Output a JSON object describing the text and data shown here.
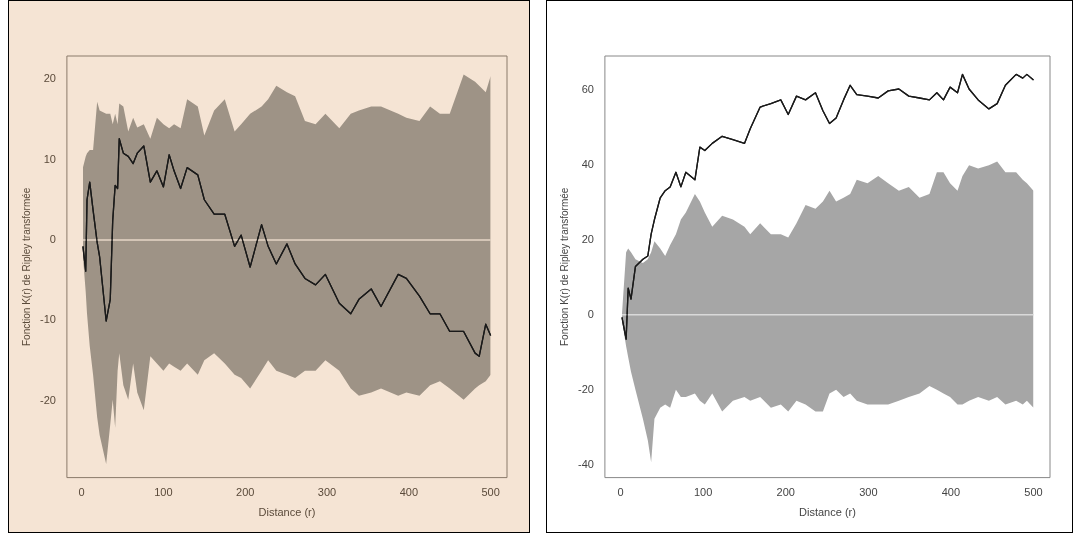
{
  "chart_data": [
    {
      "type": "line",
      "xlabel": "Distance (r)",
      "ylabel": "Fonction K(r) de Ripley transformée",
      "xlim": [
        -18,
        520
      ],
      "ylim": [
        -29.6,
        22.9
      ],
      "xticks": [
        0,
        100,
        200,
        300,
        400,
        500
      ],
      "yticks": [
        -20,
        -10,
        0,
        10,
        20
      ],
      "grid": false,
      "ref_lines": [
        {
          "axis": "y",
          "value": 0,
          "color": "#e6d6c6"
        }
      ],
      "x": [
        1.6,
        5,
        6.6,
        9.9,
        14,
        19,
        22,
        30,
        35,
        38,
        41,
        44,
        46,
        51,
        57,
        63,
        68,
        76,
        84,
        92,
        100,
        107,
        113,
        121,
        129,
        142,
        150,
        162,
        175,
        187,
        195,
        206,
        220,
        228,
        238,
        251,
        261,
        273,
        286,
        298,
        315,
        329,
        339,
        354,
        366,
        387,
        397,
        413,
        426,
        438,
        450,
        467,
        481,
        486,
        494,
        500
      ],
      "series": [
        {
          "color": "#1a1a1a",
          "values": [
            -0.8,
            -3.9,
            5,
            7.2,
            3.7,
            -0.3,
            -2.1,
            -10.1,
            -7.4,
            2.4,
            6.8,
            6.4,
            12.6,
            10.8,
            10.4,
            9.5,
            10.8,
            11.7,
            7.2,
            8.6,
            6.6,
            10.6,
            8.6,
            6.4,
            9,
            8.1,
            5,
            3.2,
            3.2,
            -0.8,
            0.6,
            -3.4,
            1.9,
            -0.8,
            -3,
            -0.5,
            -3,
            -4.8,
            -5.6,
            -4.3,
            -7.9,
            -9.2,
            -7.4,
            -6.1,
            -8.3,
            -4.3,
            -4.8,
            -7,
            -9.2,
            -9.2,
            -11.4,
            -11.4,
            -14.1,
            -14.5,
            -10.5,
            -11.9
          ],
          "upper": [
            9,
            10.4,
            10.8,
            11.2,
            11.2,
            17.2,
            16.1,
            15.7,
            15.7,
            14.4,
            15.7,
            14.4,
            17,
            16.6,
            13.5,
            15.2,
            14,
            14.4,
            12.6,
            15.2,
            14.4,
            13.9,
            14.4,
            13.9,
            17.5,
            16.6,
            13,
            16.1,
            17.5,
            13.5,
            14.4,
            15.7,
            16.6,
            17.5,
            19.2,
            18.4,
            17.9,
            14.8,
            14.4,
            15.7,
            13.9,
            15.7,
            16.1,
            16.6,
            16.6,
            15.7,
            15.2,
            14.8,
            16.6,
            15.7,
            15.7,
            20.6,
            19.7,
            19.2,
            18.4,
            20.4
          ],
          "lower": [
            -2.1,
            -6.5,
            -9.2,
            -13.2,
            -16.8,
            -22.1,
            -24.3,
            -27.9,
            -23,
            -19.9,
            -23.4,
            -16.3,
            -14.1,
            -18.1,
            -19.9,
            -15.4,
            -19,
            -21.2,
            -14.5,
            -15.4,
            -16.3,
            -15.4,
            -15.8,
            -16.3,
            -15.4,
            -16.8,
            -15,
            -14.1,
            -15.4,
            -16.8,
            -17.2,
            -18.5,
            -16.3,
            -15,
            -16.3,
            -16.8,
            -17.2,
            -16.3,
            -16.3,
            -15,
            -16.3,
            -18.5,
            -19.4,
            -19,
            -18.5,
            -19.4,
            -19,
            -19.4,
            -18.1,
            -17.6,
            -18.5,
            -19.9,
            -18.5,
            -18.1,
            -17.6,
            -16.8
          ]
        }
      ]
    },
    {
      "type": "line",
      "xlabel": "Distance (r)",
      "ylabel": "Fonction K(r) de Ripley transformée",
      "xlim": [
        -19,
        520
      ],
      "ylim": [
        -43.4,
        69
      ],
      "xticks": [
        0,
        100,
        200,
        300,
        400,
        500
      ],
      "yticks": [
        -40,
        -20,
        0,
        20,
        40,
        60
      ],
      "grid": false,
      "ref_lines": [
        {
          "axis": "y",
          "value": 0,
          "color": "#d9d9d9"
        }
      ],
      "x": [
        1.7,
        6.7,
        9.2,
        12.6,
        18,
        27,
        33,
        37,
        41,
        48,
        54,
        60,
        67,
        73,
        79,
        90,
        96,
        102,
        111,
        123,
        136,
        150,
        157,
        169,
        182,
        194,
        203,
        213,
        224,
        236,
        245,
        253,
        261,
        270,
        278,
        286,
        299,
        312,
        324,
        337,
        349,
        362,
        374,
        383,
        391,
        399,
        408,
        414,
        422,
        433,
        446,
        456,
        466,
        479,
        487,
        492,
        500
      ],
      "series": [
        {
          "color": "#1a1a1a",
          "values": [
            -0.7,
            -6.5,
            7.1,
            4.2,
            12.9,
            14.8,
            15.7,
            21.5,
            25.4,
            31.2,
            33.1,
            34.1,
            38,
            34.1,
            38,
            36,
            44.7,
            43.8,
            45.7,
            47.6,
            46.7,
            45.7,
            49.6,
            55.4,
            56.3,
            57.3,
            53.4,
            58.3,
            57.3,
            59.2,
            54.4,
            51,
            52.5,
            57.3,
            61.2,
            58.7,
            58.3,
            57.8,
            59.7,
            60.2,
            58.3,
            57.8,
            57.3,
            59.2,
            57.3,
            60.7,
            59.2,
            64.1,
            60.2,
            57.3,
            54.9,
            56.3,
            61.2,
            64.1,
            63.1,
            64.1,
            62.6
          ],
          "upper": [
            0.3,
            16.7,
            17.7,
            16.7,
            14.8,
            13.8,
            14.8,
            16.7,
            19.6,
            17.7,
            15.7,
            18.6,
            21.5,
            25.4,
            27.3,
            32.2,
            30.2,
            27.3,
            23.5,
            26.4,
            25.4,
            23.5,
            21.5,
            24.4,
            21.5,
            21.5,
            20.6,
            24.4,
            29.3,
            28.3,
            30.2,
            33.1,
            30.2,
            31.2,
            32.2,
            36,
            35.1,
            37,
            35.1,
            33.1,
            34.1,
            31.2,
            32.2,
            38,
            38,
            35.1,
            33.1,
            37,
            39.9,
            39,
            39.9,
            40.9,
            38,
            38,
            36,
            35.1,
            33.1
          ],
          "lower": [
            -1.6,
            -8.4,
            -11.3,
            -15.2,
            -20,
            -27.7,
            -33.5,
            -39.3,
            -27.7,
            -24.8,
            -23.9,
            -24.8,
            -20,
            -21.9,
            -21.9,
            -21,
            -22.9,
            -23.9,
            -21,
            -25.8,
            -22.9,
            -21.9,
            -22.9,
            -21.9,
            -24.8,
            -23.9,
            -25.8,
            -22.9,
            -23.9,
            -25.8,
            -25.8,
            -21,
            -20,
            -21.9,
            -21,
            -22.9,
            -23.9,
            -23.9,
            -23.9,
            -22.9,
            -21.9,
            -21,
            -19,
            -20,
            -21,
            -21.9,
            -23.9,
            -23.9,
            -22.9,
            -21.9,
            -22.9,
            -21.9,
            -23.9,
            -22.9,
            -23.9,
            -22.9,
            -24.8
          ]
        }
      ]
    }
  ]
}
